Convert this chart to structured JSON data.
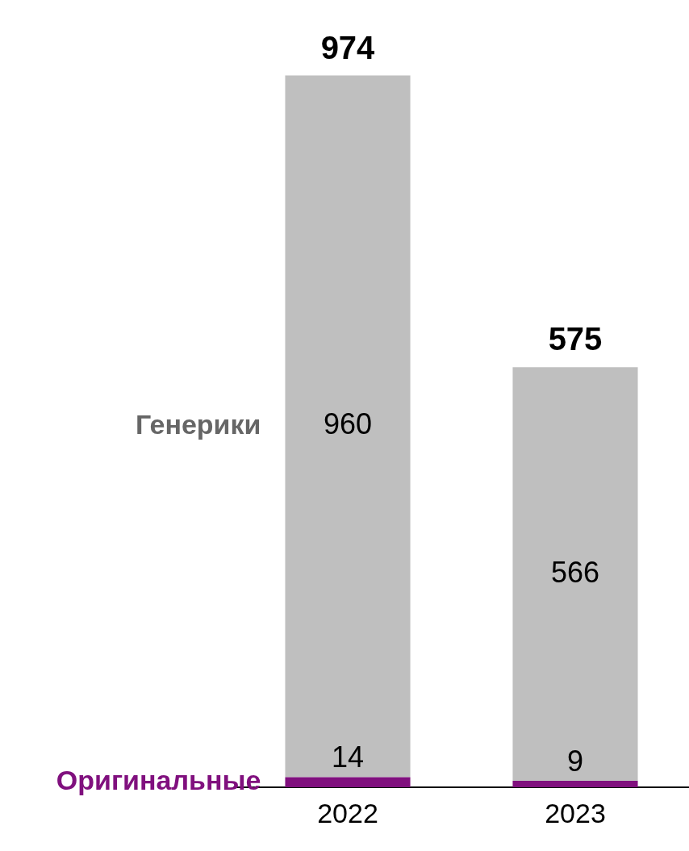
{
  "chart_data": {
    "type": "bar",
    "stacked": true,
    "categories": [
      "2022",
      "2023"
    ],
    "series": [
      {
        "name": "Оригинальные",
        "color": "#80107e",
        "values": [
          14,
          9
        ]
      },
      {
        "name": "Генерики",
        "color": "#bfbfbf",
        "values": [
          960,
          566
        ]
      }
    ],
    "data_labels": true,
    "totals": [
      "974",
      "575"
    ],
    "tick_labels": "x",
    "grid": false,
    "legend": false
  }
}
